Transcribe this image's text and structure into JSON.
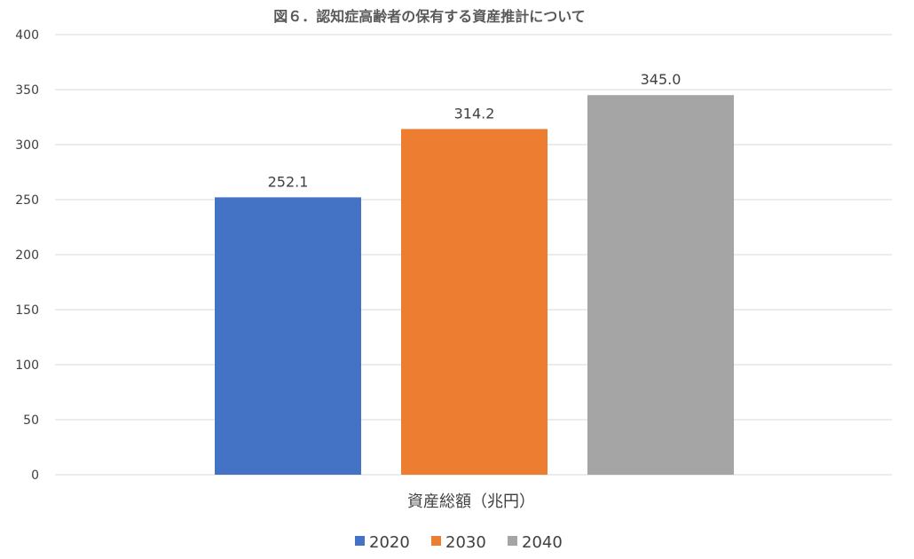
{
  "chart_data": {
    "type": "bar",
    "title": "図６．認知症高齢者の保有する資産推計について",
    "categories": [
      "資産総額（兆円）"
    ],
    "series": [
      {
        "name": "2020",
        "values": [
          252.1
        ],
        "color": "#4472c4",
        "label": "252.1"
      },
      {
        "name": "2030",
        "values": [
          314.2
        ],
        "color": "#ed7d31",
        "label": "314.2"
      },
      {
        "name": "2040",
        "values": [
          345.0
        ],
        "color": "#a5a5a5",
        "label": "345.0"
      }
    ],
    "ylim": [
      0,
      400
    ],
    "yticks": [
      0,
      50,
      100,
      150,
      200,
      250,
      300,
      350,
      400
    ],
    "grid": true,
    "legend_position": "bottom"
  }
}
